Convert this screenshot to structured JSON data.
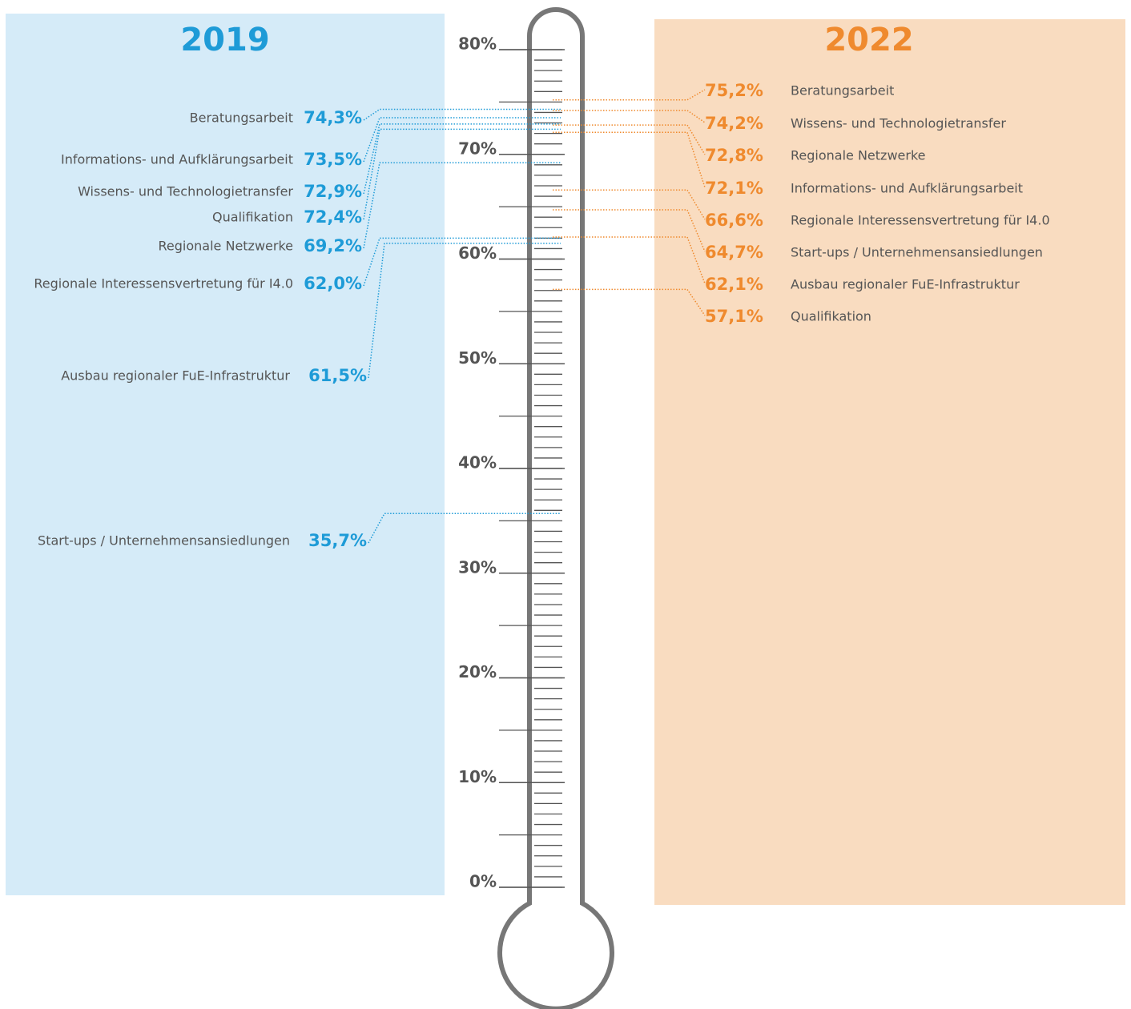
{
  "chart_data": {
    "type": "thermometer",
    "ylim": [
      0,
      80
    ],
    "yticks": [
      {
        "value": 0,
        "label": "0%"
      },
      {
        "value": 10,
        "label": "10%"
      },
      {
        "value": 20,
        "label": "20%"
      },
      {
        "value": 30,
        "label": "30%"
      },
      {
        "value": 40,
        "label": "40%"
      },
      {
        "value": 50,
        "label": "50%"
      },
      {
        "value": 60,
        "label": "60%"
      },
      {
        "value": 70,
        "label": "70%"
      },
      {
        "value": 80,
        "label": "80%"
      }
    ],
    "series": [
      {
        "name": "2019",
        "color": "#1e9bd7",
        "panel_color": "#d5ebf8",
        "categories": [
          "Beratungsarbeit",
          "Informations- und Aufklärungsarbeit",
          "Wissens- und Technologietransfer",
          "Qualifikation",
          "Regionale Netzwerke",
          "Regionale Interessensvertretung für I4.0",
          "Ausbau regionaler FuE-Infrastruktur",
          "Start-ups / Unternehmensansiedlungen"
        ],
        "values": [
          74.3,
          73.5,
          72.9,
          72.4,
          69.2,
          62.0,
          61.5,
          35.7
        ],
        "value_labels": [
          "74,3%",
          "73,5%",
          "72,9%",
          "72,4%",
          "69,2%",
          "62,0%",
          "61,5%",
          "35,7%"
        ]
      },
      {
        "name": "2022",
        "color": "#ef8a2e",
        "panel_color": "#f9dcc0",
        "categories": [
          "Beratungsarbeit",
          "Wissens- und Technologietransfer",
          "Regionale Netzwerke",
          "Informations- und Aufklärungsarbeit",
          "Regionale Interessensvertretung für I4.0",
          "Start-ups / Unternehmensansiedlungen",
          "Ausbau regionaler FuE-Infrastruktur",
          "Qualifikation"
        ],
        "values": [
          75.2,
          74.2,
          72.8,
          72.1,
          66.6,
          64.7,
          62.1,
          57.1
        ],
        "value_labels": [
          "75,2%",
          "74,2%",
          "72,8%",
          "72,1%",
          "66,6%",
          "64,7%",
          "62,1%",
          "57,1%"
        ]
      }
    ]
  }
}
